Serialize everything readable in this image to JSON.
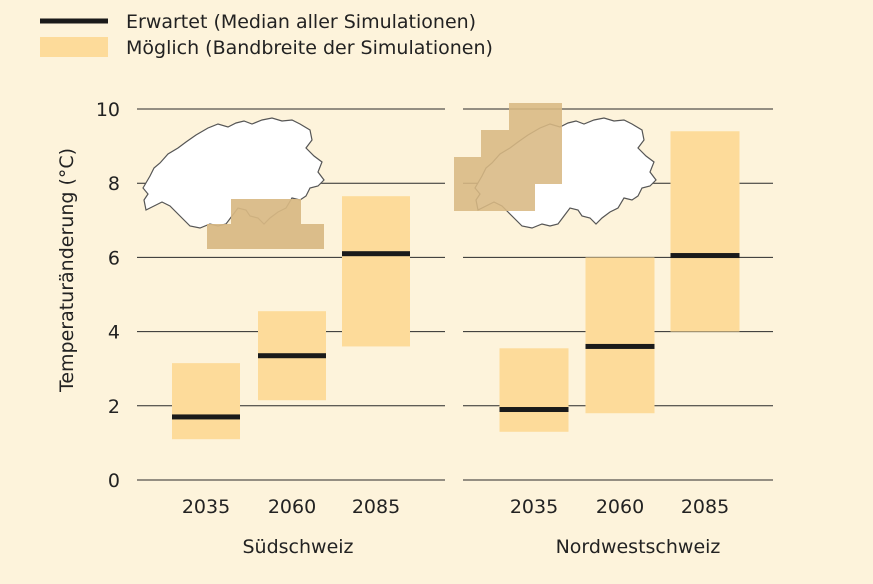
{
  "legend": [
    {
      "label": "Erwartet (Median aller Simulationen)",
      "kind": "line",
      "color": "#1a1a1a"
    },
    {
      "label": "Möglich (Bandbreite der Simulationen)",
      "kind": "band",
      "color": "#fddb9a"
    }
  ],
  "colors": {
    "background": "#fdf3db",
    "band": "#fddb9a",
    "median": "#1a1a1a",
    "grid": "#2a2a2a",
    "map_fill": "#ffffff",
    "map_stroke": "#555555",
    "region_highlight": "#d8b883"
  },
  "chart_data": {
    "type": "range-bar",
    "ylabel": "Temperaturänderung (°C)",
    "ylim": [
      0,
      10
    ],
    "yticks": [
      0,
      2,
      4,
      6,
      8,
      10
    ],
    "grid": true,
    "panels": [
      {
        "title": "Südschweiz",
        "region_icon": "switzerland-map-south-icon",
        "categories": [
          "2035",
          "2060",
          "2085"
        ],
        "median": [
          1.7,
          3.35,
          6.1
        ],
        "low": [
          1.1,
          2.15,
          3.6
        ],
        "high": [
          3.15,
          4.55,
          7.65
        ]
      },
      {
        "title": "Nordwestschweiz",
        "region_icon": "switzerland-map-northwest-icon",
        "categories": [
          "2035",
          "2060",
          "2085"
        ],
        "median": [
          1.9,
          3.6,
          6.05
        ],
        "low": [
          1.3,
          1.8,
          4.0
        ],
        "high": [
          3.55,
          6.0,
          9.4
        ]
      }
    ]
  }
}
